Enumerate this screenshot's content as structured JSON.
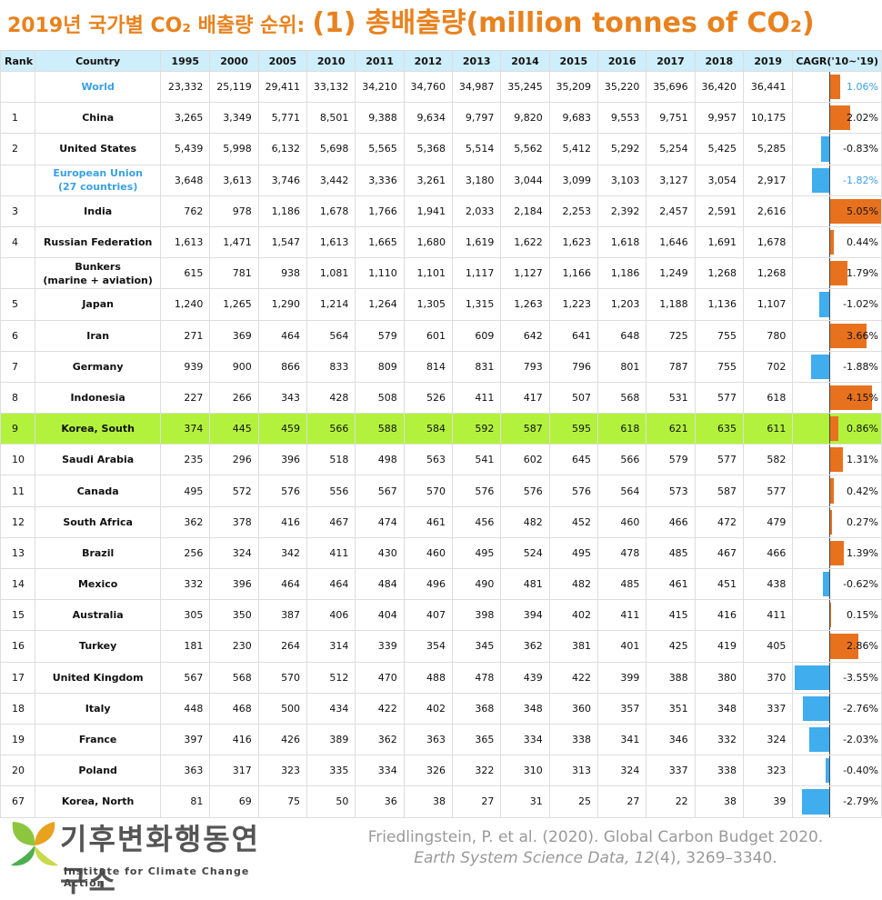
{
  "title": {
    "main": "2019년 국가별 CO₂ 배출량 순위:",
    "sub": "(1) 총배출량(million tonnes of CO₂)"
  },
  "colors": {
    "accent": "#e8821e",
    "header_bg": "#cdeefa",
    "highlight": "#b2f23d",
    "aggregate_text": "#3aa0e6",
    "bar_positive": "#e8711e",
    "bar_negative": "#40adee"
  },
  "chart_data": {
    "type": "table",
    "columns": [
      "Rank",
      "Country",
      "1995",
      "2000",
      "2005",
      "2010",
      "2011",
      "2012",
      "2013",
      "2014",
      "2015",
      "2016",
      "2017",
      "2018",
      "2019",
      "CAGR('10~'19)"
    ],
    "rows": [
      {
        "rank": "",
        "country": "World",
        "style": "aggregate",
        "values": [
          "23,332",
          "25,119",
          "29,411",
          "33,132",
          "34,210",
          "34,760",
          "34,987",
          "35,245",
          "35,209",
          "35,220",
          "35,696",
          "36,420",
          "36,441"
        ],
        "cagr": 1.06,
        "cagr_label": "1.06%"
      },
      {
        "rank": "1",
        "country": "China",
        "style": "",
        "values": [
          "3,265",
          "3,349",
          "5,771",
          "8,501",
          "9,388",
          "9,634",
          "9,797",
          "9,820",
          "9,683",
          "9,553",
          "9,751",
          "9,957",
          "10,175"
        ],
        "cagr": 2.02,
        "cagr_label": "2.02%"
      },
      {
        "rank": "2",
        "country": "United States",
        "style": "",
        "values": [
          "5,439",
          "5,998",
          "6,132",
          "5,698",
          "5,565",
          "5,368",
          "5,514",
          "5,562",
          "5,412",
          "5,292",
          "5,254",
          "5,425",
          "5,285"
        ],
        "cagr": -0.83,
        "cagr_label": "-0.83%"
      },
      {
        "rank": "",
        "country": "European Union\n(27 countries)",
        "style": "aggregate",
        "values": [
          "3,648",
          "3,613",
          "3,746",
          "3,442",
          "3,336",
          "3,261",
          "3,180",
          "3,044",
          "3,099",
          "3,103",
          "3,127",
          "3,054",
          "2,917"
        ],
        "cagr": -1.82,
        "cagr_label": "-1.82%"
      },
      {
        "rank": "3",
        "country": "India",
        "style": "",
        "values": [
          "762",
          "978",
          "1,186",
          "1,678",
          "1,766",
          "1,941",
          "2,033",
          "2,184",
          "2,253",
          "2,392",
          "2,457",
          "2,591",
          "2,616"
        ],
        "cagr": 5.05,
        "cagr_label": "5.05%"
      },
      {
        "rank": "4",
        "country": "Russian Federation",
        "style": "",
        "values": [
          "1,613",
          "1,471",
          "1,547",
          "1,613",
          "1,665",
          "1,680",
          "1,619",
          "1,622",
          "1,623",
          "1,618",
          "1,646",
          "1,691",
          "1,678"
        ],
        "cagr": 0.44,
        "cagr_label": "0.44%"
      },
      {
        "rank": "",
        "country": "Bunkers\n(marine + aviation)",
        "style": "",
        "values": [
          "615",
          "781",
          "938",
          "1,081",
          "1,110",
          "1,101",
          "1,117",
          "1,127",
          "1,166",
          "1,186",
          "1,249",
          "1,268",
          "1,268"
        ],
        "cagr": 1.79,
        "cagr_label": "1.79%"
      },
      {
        "rank": "5",
        "country": "Japan",
        "style": "",
        "values": [
          "1,240",
          "1,265",
          "1,290",
          "1,214",
          "1,264",
          "1,305",
          "1,315",
          "1,263",
          "1,223",
          "1,203",
          "1,188",
          "1,136",
          "1,107"
        ],
        "cagr": -1.02,
        "cagr_label": "-1.02%"
      },
      {
        "rank": "6",
        "country": "Iran",
        "style": "",
        "values": [
          "271",
          "369",
          "464",
          "564",
          "579",
          "601",
          "609",
          "642",
          "641",
          "648",
          "725",
          "755",
          "780"
        ],
        "cagr": 3.66,
        "cagr_label": "3.66%"
      },
      {
        "rank": "7",
        "country": "Germany",
        "style": "",
        "values": [
          "939",
          "900",
          "866",
          "833",
          "809",
          "814",
          "831",
          "793",
          "796",
          "801",
          "787",
          "755",
          "702"
        ],
        "cagr": -1.88,
        "cagr_label": "-1.88%"
      },
      {
        "rank": "8",
        "country": "Indonesia",
        "style": "",
        "values": [
          "227",
          "266",
          "343",
          "428",
          "508",
          "526",
          "411",
          "417",
          "507",
          "568",
          "531",
          "577",
          "618"
        ],
        "cagr": 4.15,
        "cagr_label": "4.15%"
      },
      {
        "rank": "9",
        "country": "Korea, South",
        "style": "highlight",
        "values": [
          "374",
          "445",
          "459",
          "566",
          "588",
          "584",
          "592",
          "587",
          "595",
          "618",
          "621",
          "635",
          "611"
        ],
        "cagr": 0.86,
        "cagr_label": "0.86%"
      },
      {
        "rank": "10",
        "country": "Saudi Arabia",
        "style": "",
        "values": [
          "235",
          "296",
          "396",
          "518",
          "498",
          "563",
          "541",
          "602",
          "645",
          "566",
          "579",
          "577",
          "582"
        ],
        "cagr": 1.31,
        "cagr_label": "1.31%"
      },
      {
        "rank": "11",
        "country": "Canada",
        "style": "",
        "values": [
          "495",
          "572",
          "576",
          "556",
          "567",
          "570",
          "576",
          "576",
          "576",
          "564",
          "573",
          "587",
          "577"
        ],
        "cagr": 0.42,
        "cagr_label": "0.42%"
      },
      {
        "rank": "12",
        "country": "South Africa",
        "style": "",
        "values": [
          "362",
          "378",
          "416",
          "467",
          "474",
          "461",
          "456",
          "482",
          "452",
          "460",
          "466",
          "472",
          "479"
        ],
        "cagr": 0.27,
        "cagr_label": "0.27%"
      },
      {
        "rank": "13",
        "country": "Brazil",
        "style": "",
        "values": [
          "256",
          "324",
          "342",
          "411",
          "430",
          "460",
          "495",
          "524",
          "495",
          "478",
          "485",
          "467",
          "466"
        ],
        "cagr": 1.39,
        "cagr_label": "1.39%"
      },
      {
        "rank": "14",
        "country": "Mexico",
        "style": "",
        "values": [
          "332",
          "396",
          "464",
          "464",
          "484",
          "496",
          "490",
          "481",
          "482",
          "485",
          "461",
          "451",
          "438"
        ],
        "cagr": -0.62,
        "cagr_label": "-0.62%"
      },
      {
        "rank": "15",
        "country": "Australia",
        "style": "",
        "values": [
          "305",
          "350",
          "387",
          "406",
          "404",
          "407",
          "398",
          "394",
          "402",
          "411",
          "415",
          "416",
          "411"
        ],
        "cagr": 0.15,
        "cagr_label": "0.15%"
      },
      {
        "rank": "16",
        "country": "Turkey",
        "style": "",
        "values": [
          "181",
          "230",
          "264",
          "314",
          "339",
          "354",
          "345",
          "362",
          "381",
          "401",
          "425",
          "419",
          "405"
        ],
        "cagr": 2.86,
        "cagr_label": "2.86%"
      },
      {
        "rank": "17",
        "country": "United Kingdom",
        "style": "",
        "values": [
          "567",
          "568",
          "570",
          "512",
          "470",
          "488",
          "478",
          "439",
          "422",
          "399",
          "388",
          "380",
          "370"
        ],
        "cagr": -3.55,
        "cagr_label": "-3.55%"
      },
      {
        "rank": "18",
        "country": "Italy",
        "style": "",
        "values": [
          "448",
          "468",
          "500",
          "434",
          "422",
          "402",
          "368",
          "348",
          "360",
          "357",
          "351",
          "348",
          "337"
        ],
        "cagr": -2.76,
        "cagr_label": "-2.76%"
      },
      {
        "rank": "19",
        "country": "France",
        "style": "",
        "values": [
          "397",
          "416",
          "426",
          "389",
          "362",
          "363",
          "365",
          "334",
          "338",
          "341",
          "346",
          "332",
          "324"
        ],
        "cagr": -2.03,
        "cagr_label": "-2.03%"
      },
      {
        "rank": "20",
        "country": "Poland",
        "style": "",
        "values": [
          "363",
          "317",
          "323",
          "335",
          "334",
          "326",
          "322",
          "310",
          "313",
          "324",
          "337",
          "338",
          "323"
        ],
        "cagr": -0.4,
        "cagr_label": "-0.40%"
      },
      {
        "rank": "67",
        "country": "Korea, North",
        "style": "",
        "values": [
          "81",
          "69",
          "75",
          "50",
          "36",
          "38",
          "27",
          "31",
          "25",
          "27",
          "22",
          "38",
          "39"
        ],
        "cagr": -2.79,
        "cagr_label": "-2.79%"
      }
    ]
  },
  "logo": {
    "name_kr": "기후변화행동연구소",
    "name_en": "Institute for Climate Change Action",
    "icon": "leaf-logo-icon"
  },
  "citation": {
    "line1": "Friedlingstein, P. et al. (2020). Global Carbon Budget 2020.",
    "journal": "Earth System Science Data, 12",
    "rest": "(4), 3269–3340."
  }
}
